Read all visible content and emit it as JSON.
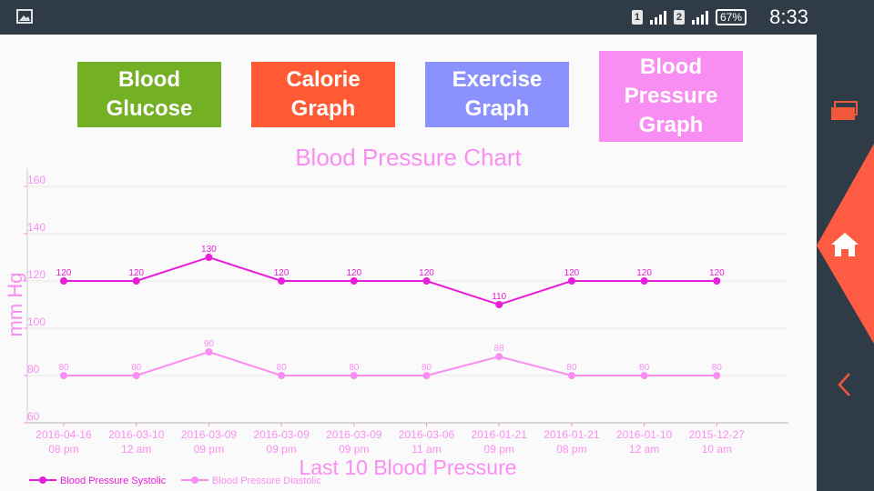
{
  "status_bar": {
    "sim1": "1",
    "sim2": "2",
    "battery": "67%",
    "time": "8:33"
  },
  "buttons": [
    {
      "label": "Blood Glucose",
      "color": "#73b023"
    },
    {
      "label": "Calorie Graph",
      "color": "#ff5a33"
    },
    {
      "label": "Exercise Graph",
      "color": "#8b92fd"
    },
    {
      "label": "Blood Pressure Graph",
      "color": "#f98ef2"
    }
  ],
  "nav_rail": {
    "icons": [
      "recent-apps-icon",
      "home-icon",
      "back-icon"
    ],
    "accent": "#fd5c43"
  },
  "chart_data": {
    "type": "line",
    "title": "Blood Pressure Chart",
    "xlabel": "Last 10 Blood Pressure",
    "ylabel": "mm Hg",
    "ylim": [
      60,
      160
    ],
    "yticks": [
      60,
      80,
      100,
      120,
      140,
      160
    ],
    "grid": true,
    "legend_position": "bottom-left",
    "categories": [
      [
        "2016-04-16",
        "08 pm"
      ],
      [
        "2016-03-10",
        "12 am"
      ],
      [
        "2016-03-09",
        "09 pm"
      ],
      [
        "2016-03-09",
        "09 pm"
      ],
      [
        "2016-03-09",
        "09 pm"
      ],
      [
        "2016-03-06",
        "11 am"
      ],
      [
        "2016-01-21",
        "09 pm"
      ],
      [
        "2016-01-21",
        "08 pm"
      ],
      [
        "2016-01-10",
        "12 am"
      ],
      [
        "2015-12-27",
        "10 am"
      ]
    ],
    "series": [
      {
        "name": "Blood Pressure Systolic",
        "color": "#e81ed8",
        "values": [
          120,
          120,
          130,
          120,
          120,
          120,
          110,
          120,
          120,
          120
        ]
      },
      {
        "name": "Blood Pressure Diastolic",
        "color": "#f98ef2",
        "values": [
          80,
          80,
          90,
          80,
          80,
          80,
          88,
          80,
          80,
          80
        ]
      }
    ]
  }
}
